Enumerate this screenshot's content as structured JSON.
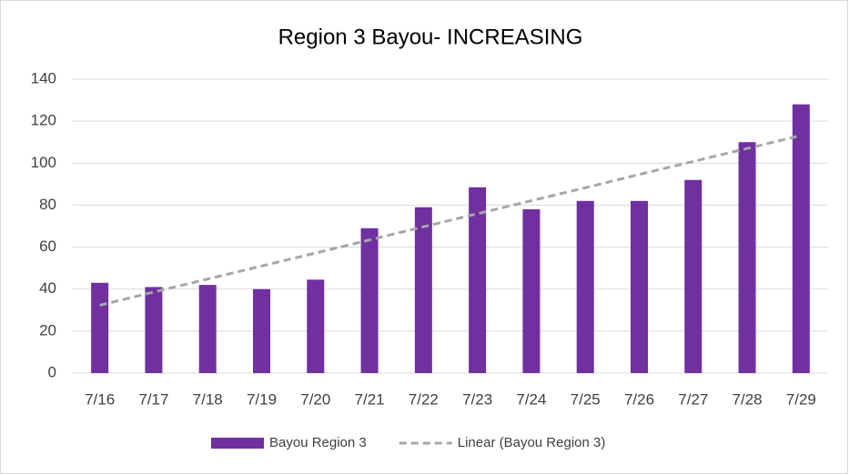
{
  "chart_data": {
    "type": "bar",
    "title": "Region 3 Bayou- INCREASING",
    "categories": [
      "7/16",
      "7/17",
      "7/18",
      "7/19",
      "7/20",
      "7/21",
      "7/22",
      "7/23",
      "7/24",
      "7/25",
      "7/26",
      "7/27",
      "7/28",
      "7/29"
    ],
    "series": [
      {
        "name": "Bayou Region 3",
        "type": "bar",
        "color": "#7030a0",
        "values": [
          43,
          41,
          42,
          40,
          44.5,
          69,
          79,
          88.5,
          78,
          82,
          82,
          92,
          110,
          128
        ]
      },
      {
        "name": "Linear (Bayou Region 3)",
        "type": "line",
        "color": "#a6a6a6",
        "dashed": true,
        "values": [
          32.3,
          38.6,
          44.8,
          51.0,
          57.2,
          63.4,
          69.7,
          75.9,
          82.1,
          88.3,
          94.6,
          100.8,
          107.0,
          113.2
        ]
      }
    ],
    "ylim": [
      0,
      140
    ],
    "yticks": [
      0,
      20,
      40,
      60,
      80,
      100,
      120,
      140
    ],
    "grid": true,
    "legend": "bottom"
  }
}
